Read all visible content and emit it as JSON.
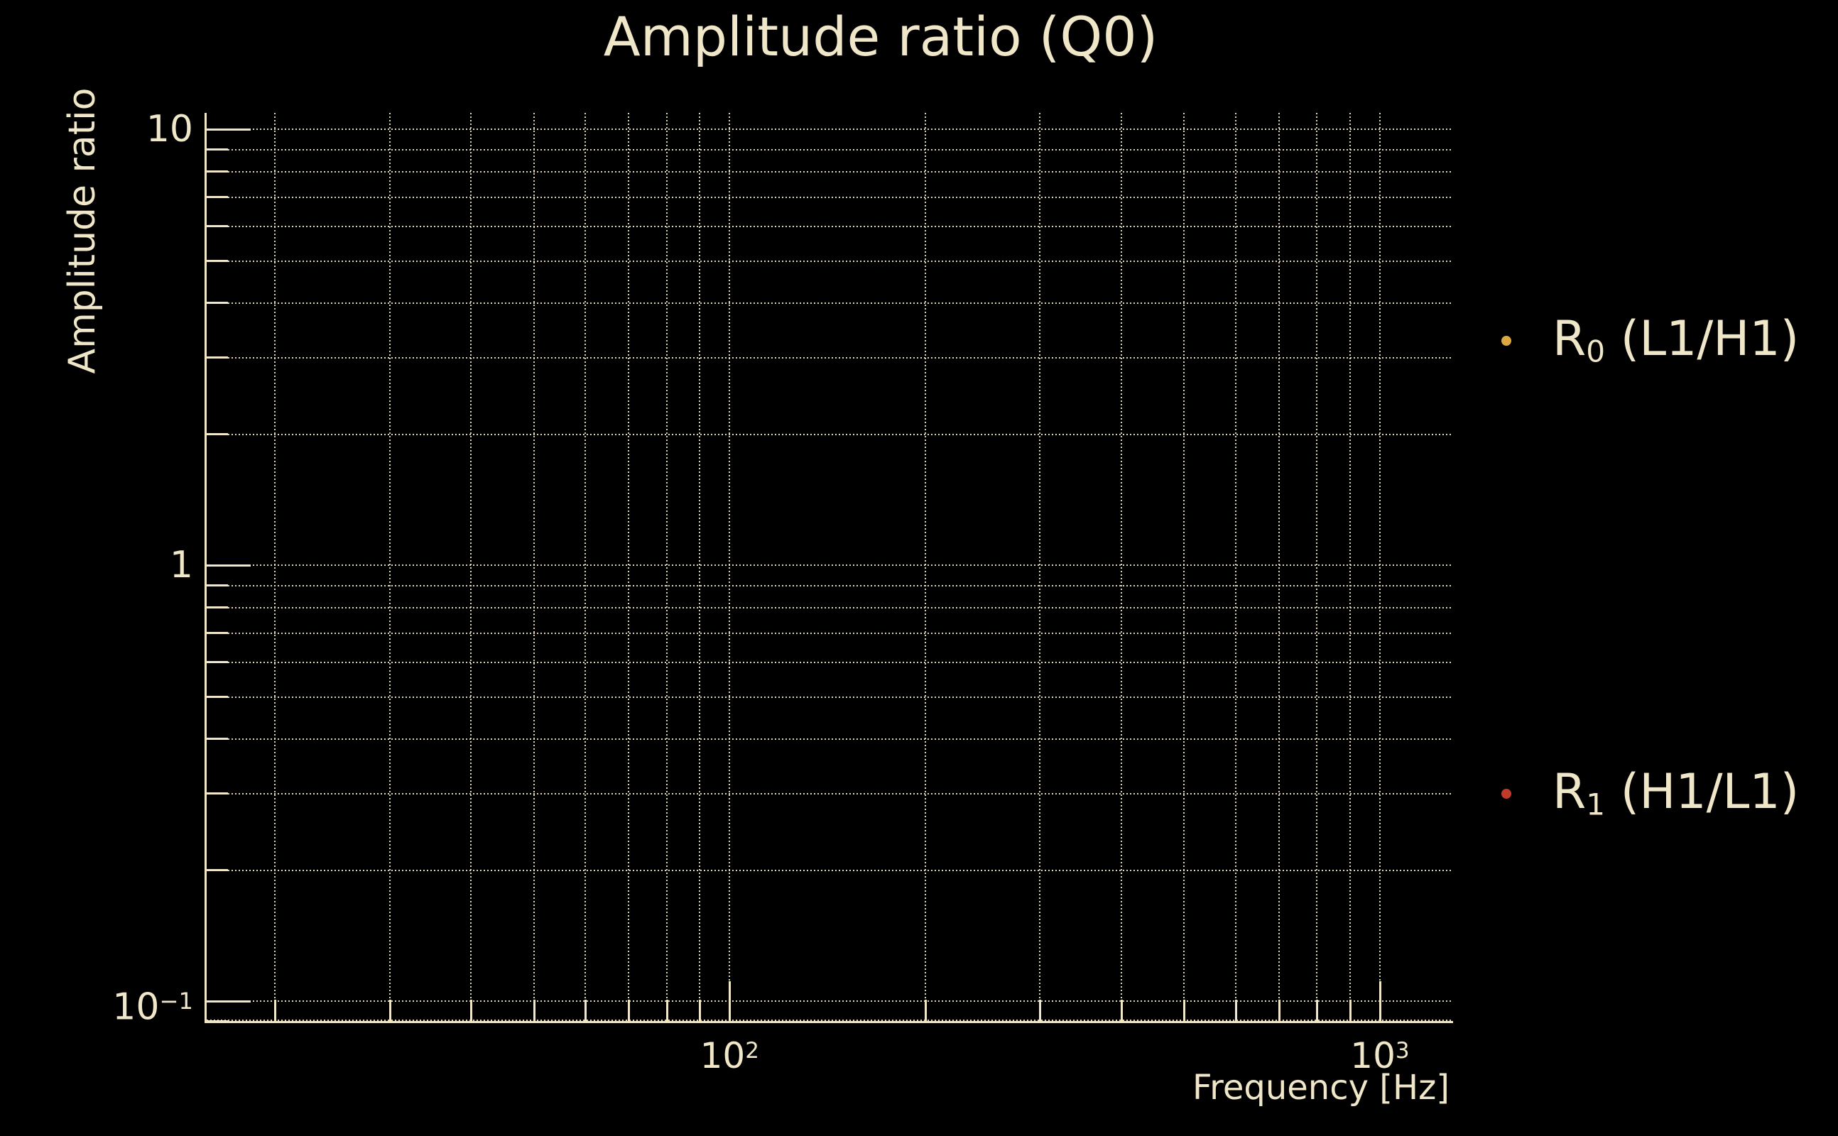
{
  "figure": {
    "background": "#000000",
    "text_color": "#f0e6c8",
    "grid_color": "#f0e6c8"
  },
  "chart_data": {
    "type": "scatter",
    "title": "Amplitude ratio (Q0)",
    "xlabel": "Frequency [Hz]",
    "ylabel": "Amplitude ratio",
    "x_scale": "log",
    "y_scale": "log",
    "xlim": [
      15.7,
      1286
    ],
    "ylim": [
      0.09,
      10.9
    ],
    "x_major_ticks": [
      100,
      1000
    ],
    "x_major_labels": [
      "10^2",
      "10^3"
    ],
    "x_minor_ticks": [
      20,
      30,
      40,
      50,
      60,
      70,
      80,
      90,
      200,
      300,
      400,
      500,
      600,
      700,
      800,
      900
    ],
    "y_major_ticks": [
      10,
      1,
      0.1
    ],
    "y_major_labels": [
      "10",
      "1",
      "10^−1"
    ],
    "y_minor_ticks": [
      0.09,
      0.2,
      0.3,
      0.4,
      0.5,
      0.6,
      0.7,
      0.8,
      0.9,
      2,
      3,
      4,
      5,
      6,
      7,
      8,
      9
    ],
    "grid": {
      "style": "dotted",
      "which": "both",
      "visible": true
    },
    "legend": {
      "position": "right-outside",
      "entries": [
        {
          "base": "R",
          "sub": "0",
          "rest": " (L1/H1)",
          "color": "#dca640"
        },
        {
          "base": "R",
          "sub": "1",
          "rest": " (H1/L1)",
          "color": "#c03b2a"
        }
      ]
    },
    "series": [
      {
        "name": "R0 (L1/H1)",
        "color": "#dca640",
        "marker": "dot",
        "x": [],
        "y": []
      },
      {
        "name": "R1 (H1/L1)",
        "color": "#c03b2a",
        "marker": "dot",
        "x": [],
        "y": []
      }
    ]
  }
}
